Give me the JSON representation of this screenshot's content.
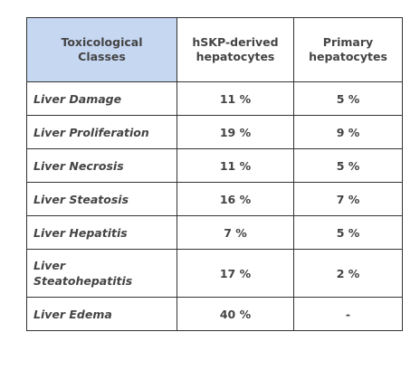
{
  "table": {
    "headers": {
      "class": "Toxicological\nClasses",
      "hskp": "hSKP-derived\nhepatocytes",
      "primary": "Primary\nhepatocytes"
    },
    "rows": [
      {
        "class": "Liver Damage",
        "hskp": "11 %",
        "primary": "5 %"
      },
      {
        "class": "Liver Proliferation",
        "hskp": "19 %",
        "primary": "9 %"
      },
      {
        "class": "Liver Necrosis",
        "hskp": "11 %",
        "primary": "5 %"
      },
      {
        "class": "Liver Steatosis",
        "hskp": "16 %",
        "primary": "7 %"
      },
      {
        "class": "Liver Hepatitis",
        "hskp": "7 %",
        "primary": "5 %"
      },
      {
        "class": "Liver\nSteatohepatitis",
        "hskp": "17 %",
        "primary": "2 %"
      },
      {
        "class": "Liver Edema",
        "hskp": "40 %",
        "primary": "-"
      }
    ],
    "colors": {
      "header_highlight": "#c6d7f2",
      "border": "#333333",
      "text": "#444444"
    }
  }
}
